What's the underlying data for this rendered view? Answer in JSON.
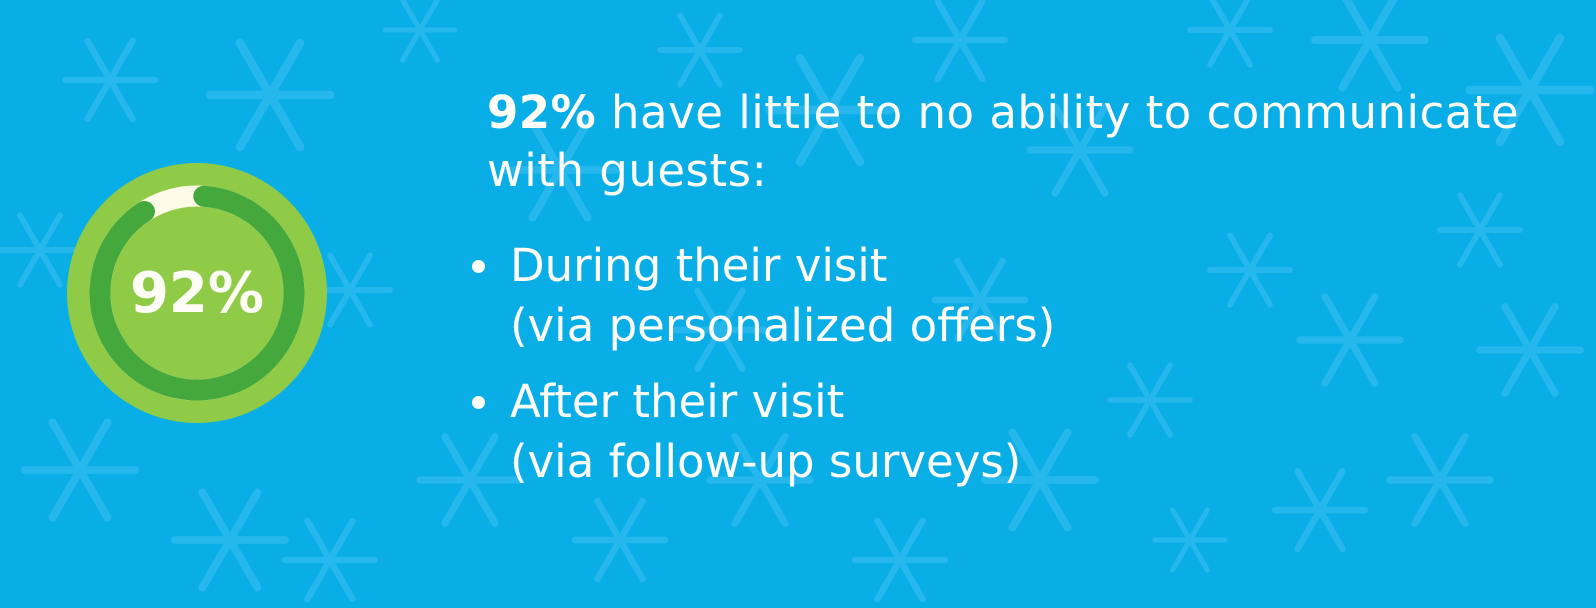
{
  "stat": {
    "value_label": "92%",
    "percent": 92,
    "colors": {
      "background": "#0aaee6",
      "outer": "#8fcb47",
      "ring": "#44a83c",
      "track": "#fdfbe8",
      "text": "#fdfdf5"
    }
  },
  "heading": {
    "bold": "92%",
    "rest": " have little to no ability to communicate with guests:"
  },
  "bullets": [
    {
      "line1": "During their visit",
      "line2": "(via personalized offers)"
    },
    {
      "line1": "After their visit",
      "line2": "(via follow-up surveys)"
    }
  ],
  "background_icon": "snowflake-icon"
}
